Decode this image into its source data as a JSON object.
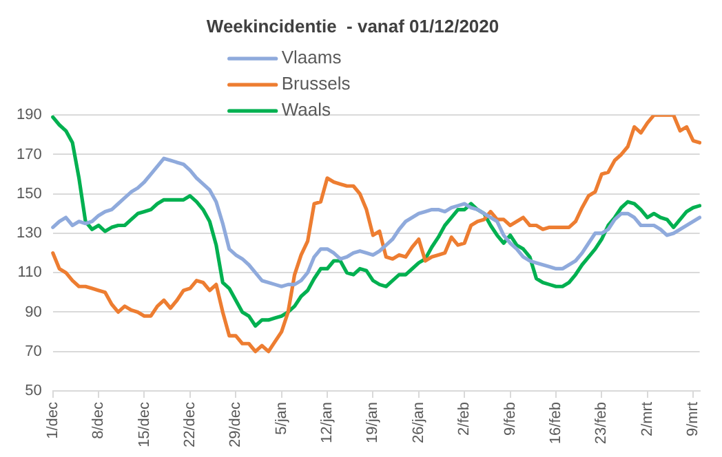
{
  "chart_data": {
    "type": "line",
    "title": "Weekincidentie  - vanaf 01/12/2020",
    "categories": [
      "1/dec",
      null,
      null,
      null,
      null,
      null,
      null,
      "8/dec",
      null,
      null,
      null,
      null,
      null,
      null,
      "15/dec",
      null,
      null,
      null,
      null,
      null,
      null,
      "22/dec",
      null,
      null,
      null,
      null,
      null,
      null,
      "29/dec",
      null,
      null,
      null,
      null,
      null,
      null,
      "5/jan",
      null,
      null,
      null,
      null,
      null,
      null,
      "12/jan",
      null,
      null,
      null,
      null,
      null,
      null,
      "19/jan",
      null,
      null,
      null,
      null,
      null,
      null,
      "26/jan",
      null,
      null,
      null,
      null,
      null,
      null,
      "2/feb",
      null,
      null,
      null,
      null,
      null,
      null,
      "9/feb",
      null,
      null,
      null,
      null,
      null,
      null,
      "16/feb",
      null,
      null,
      null,
      null,
      null,
      null,
      "23/feb",
      null,
      null,
      null,
      null,
      null,
      null,
      "2/mrt",
      null,
      null,
      null,
      null,
      null,
      null,
      "9/mrt",
      null
    ],
    "series": [
      {
        "name": "Vlaams",
        "color": "#8faadc",
        "values": [
          133,
          136,
          138,
          134,
          136,
          135,
          136,
          139,
          141,
          142,
          145,
          148,
          151,
          153,
          156,
          160,
          164,
          168,
          167,
          166,
          165,
          162,
          158,
          155,
          152,
          146,
          135,
          122,
          119,
          117,
          114,
          110,
          106,
          105,
          104,
          103,
          104,
          104,
          106,
          110,
          118,
          122,
          122,
          120,
          117,
          118,
          120,
          121,
          120,
          119,
          121,
          124,
          127,
          132,
          136,
          138,
          140,
          141,
          142,
          142,
          141,
          143,
          144,
          145,
          143,
          142,
          140,
          138,
          136,
          129,
          125,
          122,
          118,
          116,
          115,
          114,
          113,
          112,
          112,
          114,
          116,
          120,
          125,
          130,
          130,
          132,
          137,
          140,
          140,
          138,
          134,
          134,
          134,
          132,
          129,
          130,
          132,
          134,
          136,
          138
        ]
      },
      {
        "name": "Brussels",
        "color": "#ed7d31",
        "values": [
          120,
          112,
          110,
          106,
          103,
          103,
          102,
          101,
          100,
          94,
          90,
          93,
          91,
          90,
          88,
          88,
          93,
          96,
          92,
          96,
          101,
          102,
          106,
          105,
          101,
          104,
          90,
          78,
          78,
          74,
          74,
          70,
          73,
          70,
          75,
          80,
          90,
          109,
          119,
          126,
          145,
          146,
          158,
          156,
          155,
          154,
          154,
          150,
          142,
          129,
          131,
          118,
          117,
          119,
          118,
          123,
          127,
          116,
          118,
          119,
          120,
          128,
          124,
          125,
          134,
          136,
          137,
          141,
          137,
          137,
          134,
          136,
          138,
          134,
          134,
          132,
          133,
          133,
          133,
          133,
          136,
          143,
          149,
          151,
          160,
          161,
          167,
          170,
          174,
          184,
          181,
          186,
          190,
          190,
          190,
          190,
          182,
          184,
          177,
          176
        ]
      },
      {
        "name": "Waals",
        "color": "#00b050",
        "values": [
          189,
          185,
          182,
          176,
          158,
          136,
          132,
          134,
          131,
          133,
          134,
          134,
          137,
          140,
          141,
          142,
          145,
          147,
          147,
          147,
          147,
          149,
          146,
          142,
          136,
          124,
          105,
          102,
          96,
          90,
          88,
          83,
          86,
          86,
          87,
          88,
          90,
          93,
          98,
          101,
          107,
          112,
          112,
          116,
          116,
          110,
          109,
          112,
          111,
          106,
          104,
          103,
          106,
          109,
          109,
          112,
          115,
          117,
          123,
          128,
          134,
          138,
          142,
          142,
          145,
          142,
          140,
          134,
          129,
          125,
          129,
          124,
          122,
          118,
          107,
          105,
          104,
          103,
          103,
          105,
          109,
          114,
          118,
          122,
          127,
          134,
          138,
          143,
          146,
          145,
          142,
          138,
          140,
          138,
          137,
          133,
          137,
          141,
          143,
          144
        ]
      }
    ],
    "ylim": [
      50,
      190
    ],
    "yticks": [
      50,
      70,
      90,
      110,
      130,
      150,
      170,
      190
    ],
    "grid": "y",
    "legend": "top left",
    "marker": "none",
    "line_style": "solid"
  }
}
